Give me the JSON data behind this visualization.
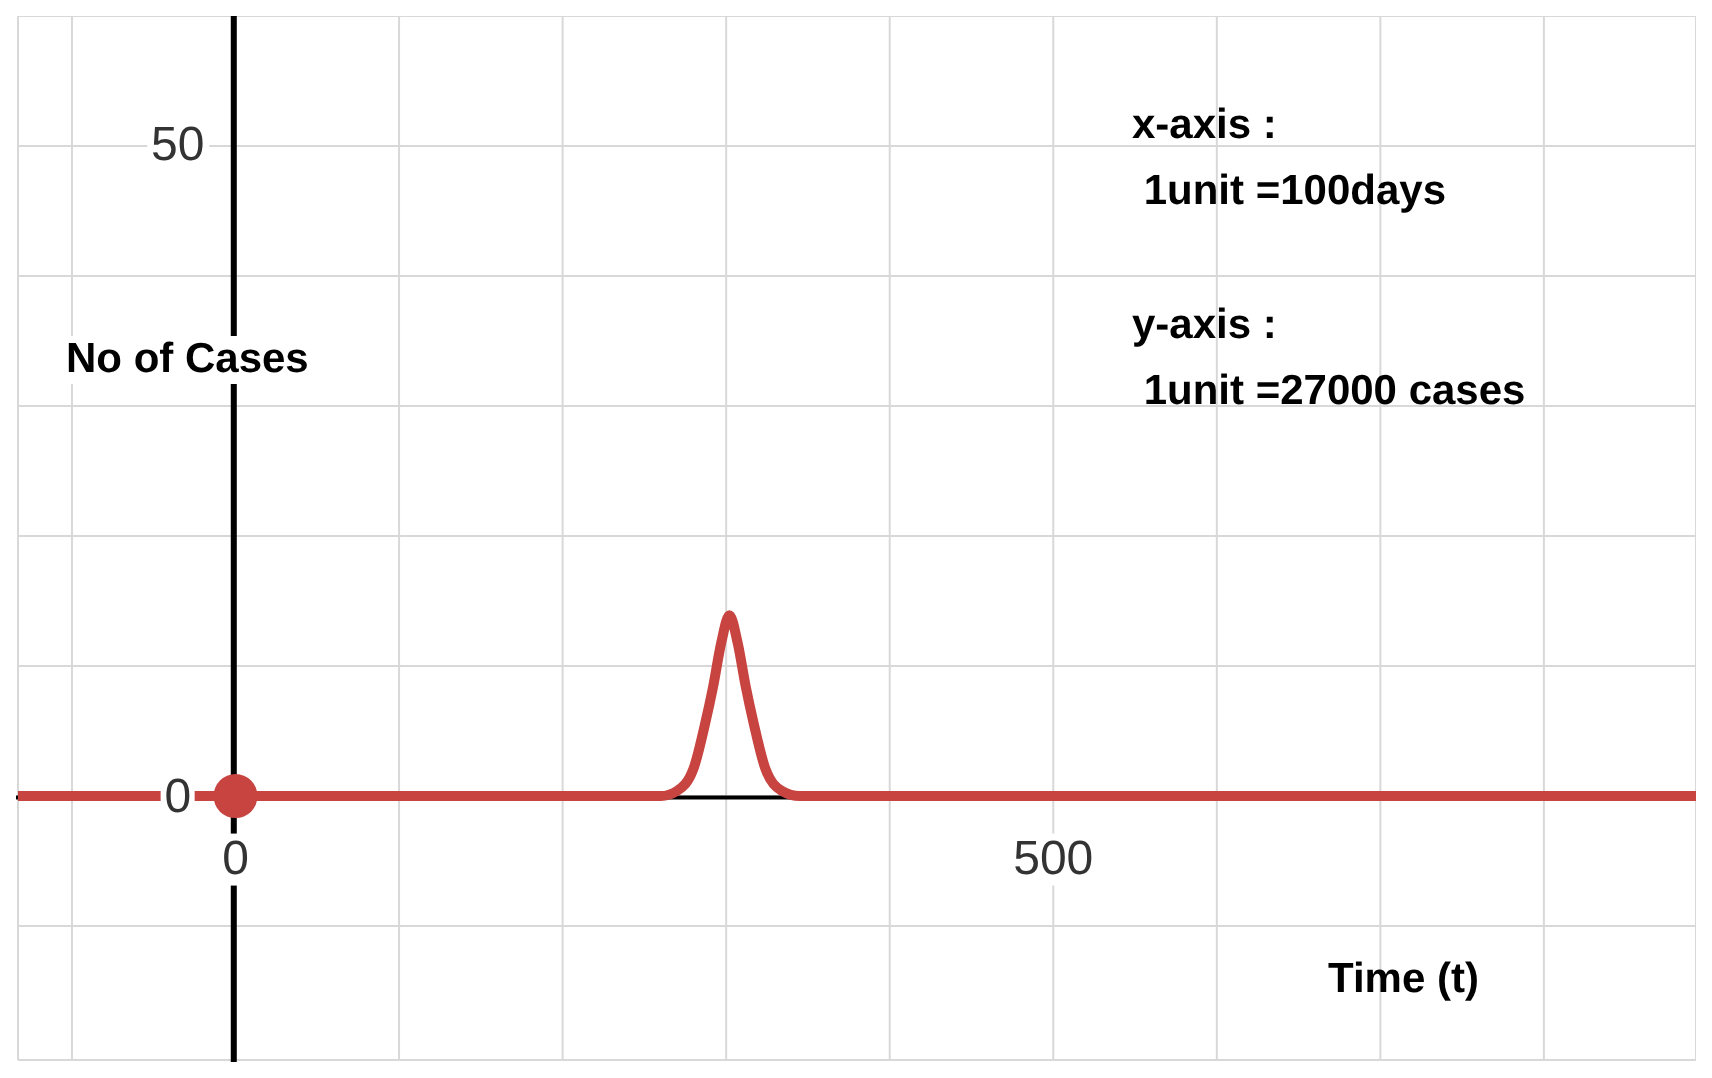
{
  "chart_data": {
    "type": "line",
    "xlabel": "Time (t)",
    "ylabel": "No of Cases",
    "annotations": [
      "x-axis :\n 1unit =100days",
      "y-axis :\n 1unit =27000 cases"
    ],
    "xlim": [
      -133,
      893
    ],
    "ylim": [
      -20.3,
      60
    ],
    "xticks": [
      {
        "value": -100,
        "label": null
      },
      {
        "value": 0,
        "label": "0"
      },
      {
        "value": 100,
        "label": null
      },
      {
        "value": 200,
        "label": null
      },
      {
        "value": 300,
        "label": null
      },
      {
        "value": 400,
        "label": null
      },
      500,
      {
        "value": 600,
        "label": null
      },
      {
        "value": 700,
        "label": null
      },
      {
        "value": 800,
        "label": null
      }
    ],
    "yticks": [
      {
        "value": -10,
        "label": null
      },
      0,
      {
        "value": 10,
        "label": null
      },
      {
        "value": 20,
        "label": null
      },
      {
        "value": 30,
        "label": null
      },
      {
        "value": 40,
        "label": null
      },
      50
    ],
    "grid": true,
    "legend": false,
    "marker": "none",
    "line_style": "solid",
    "series": [
      {
        "type": "line",
        "color": "#c74440",
        "x": [
          -133,
          0,
          260,
          270,
          280,
          287,
          292,
          297,
          302,
          307,
          312,
          317,
          324,
          334,
          345,
          893
        ],
        "values": [
          0,
          0,
          0,
          0.4,
          2.1,
          5.5,
          8.4,
          11.8,
          13.9,
          11.8,
          8.4,
          5.5,
          2.1,
          0.4,
          0,
          0
        ]
      },
      {
        "type": "scatter",
        "color": "#c74440",
        "marker": "circle",
        "x": [
          0
        ],
        "values": [
          0
        ]
      }
    ]
  }
}
